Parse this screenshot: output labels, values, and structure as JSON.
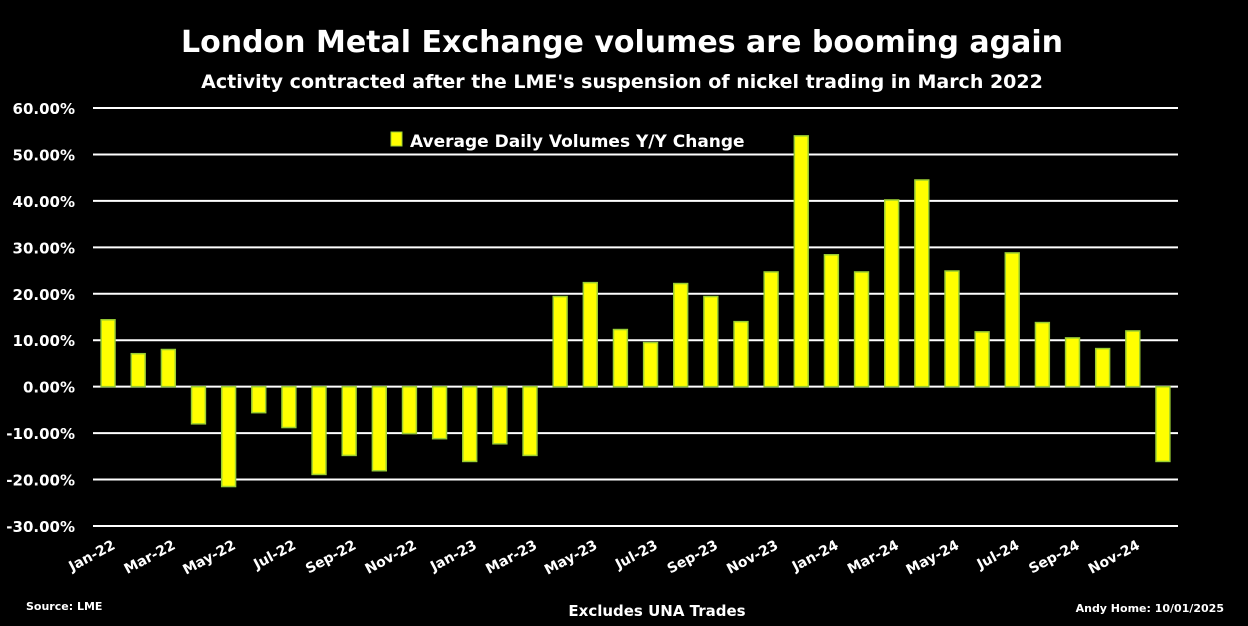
{
  "chart_data": {
    "type": "bar",
    "title": "London Metal Exchange volumes are booming again",
    "subtitle": "Activity contracted after the LME's suspension of nickel trading in March 2022",
    "legend": {
      "label": "Average Daily Volumes Y/Y Change",
      "placement": "top-center"
    },
    "xlabel": "Excludes UNA Trades",
    "source": "Source: LME",
    "credit": "Andy Home: 10/01/2025",
    "ylim": [
      -30,
      60
    ],
    "yticks": [
      "-30.00%",
      "-20.00%",
      "-10.00%",
      "0.00%",
      "10.00%",
      "20.00%",
      "30.00%",
      "40.00%",
      "50.00%",
      "60.00%"
    ],
    "grid": true,
    "bar_color": "#FFFF00",
    "bar_border": "#9ACD32",
    "categories": [
      "Jan-22",
      "Feb-22",
      "Mar-22",
      "Apr-22",
      "May-22",
      "Jun-22",
      "Jul-22",
      "Aug-22",
      "Sep-22",
      "Oct-22",
      "Nov-22",
      "Dec-22",
      "Jan-23",
      "Feb-23",
      "Mar-23",
      "Apr-23",
      "May-23",
      "Jun-23",
      "Jul-23",
      "Aug-23",
      "Sep-23",
      "Oct-23",
      "Nov-23",
      "Dec-23",
      "Jan-24",
      "Feb-24",
      "Mar-24",
      "Apr-24",
      "May-24",
      "Jun-24",
      "Jul-24",
      "Aug-24",
      "Sep-24",
      "Oct-24",
      "Nov-24",
      "Dec-24"
    ],
    "xtick_labels": [
      "Jan-22",
      "Mar-22",
      "May-22",
      "Jul-22",
      "Sep-22",
      "Nov-22",
      "Jan-23",
      "Mar-23",
      "May-23",
      "Jul-23",
      "Sep-23",
      "Nov-23",
      "Jan-24",
      "Mar-24",
      "May-24",
      "Jul-24",
      "Sep-24",
      "Nov-24"
    ],
    "values": [
      14.4,
      7.1,
      8.0,
      -8.0,
      -21.5,
      -5.6,
      -8.8,
      -18.9,
      -14.8,
      -18.1,
      -10.1,
      -11.2,
      -16.1,
      -12.3,
      -14.8,
      19.4,
      22.4,
      12.3,
      9.5,
      22.2,
      19.4,
      14.0,
      24.7,
      54.0,
      28.4,
      24.7,
      40.2,
      44.5,
      24.9,
      11.8,
      28.8,
      13.8,
      10.5,
      8.2,
      12.0,
      -16.1
    ]
  }
}
